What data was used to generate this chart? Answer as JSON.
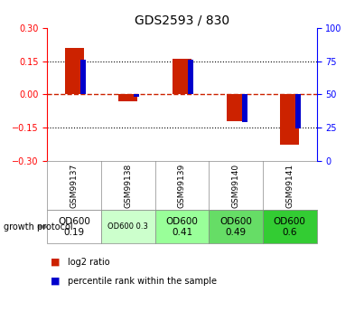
{
  "title": "GDS2593 / 830",
  "samples": [
    "GSM99137",
    "GSM99138",
    "GSM99139",
    "GSM99140",
    "GSM99141"
  ],
  "log2_ratio": [
    0.21,
    -0.03,
    0.16,
    -0.12,
    -0.23
  ],
  "percentile_rank": [
    76,
    48,
    76,
    29,
    24
  ],
  "ylim": [
    -0.3,
    0.3
  ],
  "right_ylim": [
    0,
    100
  ],
  "right_yticks": [
    0,
    25,
    50,
    75,
    100
  ],
  "left_yticks": [
    -0.3,
    -0.15,
    0,
    0.15,
    0.3
  ],
  "bar_color": "#cc2200",
  "pct_color": "#0000cc",
  "plot_bg": "#ffffff",
  "zero_line_color": "#cc2200",
  "dotted_line_color": "#000000",
  "protocol_labels": [
    "OD600\n0.19",
    "OD600 0.3",
    "OD600\n0.41",
    "OD600\n0.49",
    "OD600\n0.6"
  ],
  "protocol_colors": [
    "#ffffff",
    "#ccffcc",
    "#99ff99",
    "#66dd66",
    "#33cc33"
  ],
  "protocol_fontsize": [
    7.5,
    6,
    7.5,
    7.5,
    7.5
  ],
  "bar_width": 0.35,
  "pct_bar_width": 0.1
}
